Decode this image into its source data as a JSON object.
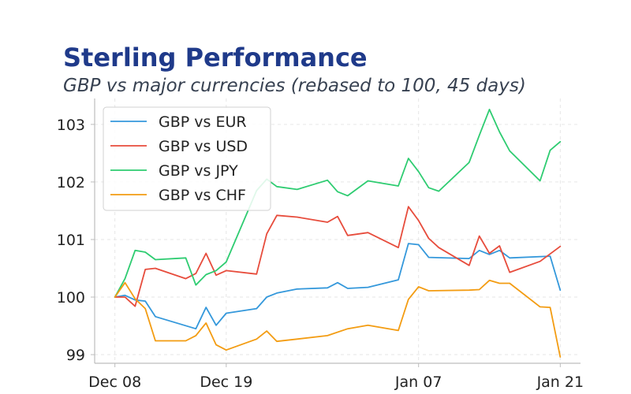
{
  "title": "Sterling Performance",
  "subtitle": "GBP vs major currencies (rebased to 100, 45 days)",
  "chart_data": {
    "type": "line",
    "xlim": [
      "2023-12-06",
      "2024-01-23"
    ],
    "ylim": [
      98.85,
      103.45
    ],
    "yticks": [
      99,
      100,
      101,
      102,
      103
    ],
    "xticks": [
      {
        "date": "2023-12-08",
        "label": "Dec 08"
      },
      {
        "date": "2023-12-19",
        "label": "Dec 19"
      },
      {
        "date": "2024-01-07",
        "label": "Jan 07"
      },
      {
        "date": "2024-01-21",
        "label": "Jan 21"
      }
    ],
    "grid": true,
    "legend_position": "top-left",
    "series": [
      {
        "name": "GBP vs EUR",
        "color": "#3498db",
        "points": [
          [
            "2023-12-08",
            100.0
          ],
          [
            "2023-12-09",
            100.03
          ],
          [
            "2023-12-10",
            99.95
          ],
          [
            "2023-12-11",
            99.93
          ],
          [
            "2023-12-12",
            99.66
          ],
          [
            "2023-12-16",
            99.45
          ],
          [
            "2023-12-17",
            99.82
          ],
          [
            "2023-12-18",
            99.51
          ],
          [
            "2023-12-19",
            99.72
          ],
          [
            "2023-12-22",
            99.8
          ],
          [
            "2023-12-23",
            100.0
          ],
          [
            "2023-12-24",
            100.07
          ],
          [
            "2023-12-26",
            100.14
          ],
          [
            "2023-12-29",
            100.16
          ],
          [
            "2023-12-30",
            100.25
          ],
          [
            "2023-12-31",
            100.15
          ],
          [
            "2024-01-02",
            100.17
          ],
          [
            "2024-01-05",
            100.3
          ],
          [
            "2024-01-06",
            100.93
          ],
          [
            "2024-01-07",
            100.91
          ],
          [
            "2024-01-08",
            100.69
          ],
          [
            "2024-01-12",
            100.67
          ],
          [
            "2024-01-13",
            100.81
          ],
          [
            "2024-01-14",
            100.74
          ],
          [
            "2024-01-15",
            100.81
          ],
          [
            "2024-01-16",
            100.68
          ],
          [
            "2024-01-20",
            100.71
          ],
          [
            "2024-01-21",
            100.12
          ]
        ]
      },
      {
        "name": "GBP vs USD",
        "color": "#e74c3c",
        "points": [
          [
            "2023-12-08",
            100.0
          ],
          [
            "2023-12-09",
            100.0
          ],
          [
            "2023-12-10",
            99.84
          ],
          [
            "2023-12-11",
            100.48
          ],
          [
            "2023-12-12",
            100.5
          ],
          [
            "2023-12-15",
            100.32
          ],
          [
            "2023-12-16",
            100.41
          ],
          [
            "2023-12-17",
            100.76
          ],
          [
            "2023-12-18",
            100.38
          ],
          [
            "2023-12-19",
            100.46
          ],
          [
            "2023-12-22",
            100.4
          ],
          [
            "2023-12-23",
            101.1
          ],
          [
            "2023-12-24",
            101.42
          ],
          [
            "2023-12-26",
            101.39
          ],
          [
            "2023-12-29",
            101.3
          ],
          [
            "2023-12-30",
            101.4
          ],
          [
            "2023-12-31",
            101.07
          ],
          [
            "2024-01-02",
            101.12
          ],
          [
            "2024-01-05",
            100.86
          ],
          [
            "2024-01-06",
            101.57
          ],
          [
            "2024-01-07",
            101.33
          ],
          [
            "2024-01-08",
            101.02
          ],
          [
            "2024-01-09",
            100.86
          ],
          [
            "2024-01-12",
            100.55
          ],
          [
            "2024-01-13",
            101.06
          ],
          [
            "2024-01-14",
            100.76
          ],
          [
            "2024-01-15",
            100.89
          ],
          [
            "2024-01-16",
            100.43
          ],
          [
            "2024-01-19",
            100.62
          ],
          [
            "2024-01-21",
            100.88
          ]
        ]
      },
      {
        "name": "GBP vs JPY",
        "color": "#2ecc71",
        "points": [
          [
            "2023-12-08",
            100.0
          ],
          [
            "2023-12-09",
            100.32
          ],
          [
            "2023-12-10",
            100.81
          ],
          [
            "2023-12-11",
            100.78
          ],
          [
            "2023-12-12",
            100.65
          ],
          [
            "2023-12-15",
            100.68
          ],
          [
            "2023-12-16",
            100.21
          ],
          [
            "2023-12-17",
            100.39
          ],
          [
            "2023-12-18",
            100.46
          ],
          [
            "2023-12-19",
            100.61
          ],
          [
            "2023-12-22",
            101.85
          ],
          [
            "2023-12-23",
            102.05
          ],
          [
            "2023-12-24",
            101.92
          ],
          [
            "2023-12-26",
            101.87
          ],
          [
            "2023-12-29",
            102.03
          ],
          [
            "2023-12-30",
            101.83
          ],
          [
            "2023-12-31",
            101.76
          ],
          [
            "2024-01-02",
            102.02
          ],
          [
            "2024-01-05",
            101.93
          ],
          [
            "2024-01-06",
            102.41
          ],
          [
            "2024-01-07",
            102.18
          ],
          [
            "2024-01-08",
            101.9
          ],
          [
            "2024-01-09",
            101.84
          ],
          [
            "2024-01-12",
            102.34
          ],
          [
            "2024-01-13",
            102.81
          ],
          [
            "2024-01-14",
            103.26
          ],
          [
            "2024-01-15",
            102.87
          ],
          [
            "2024-01-16",
            102.54
          ],
          [
            "2024-01-19",
            102.02
          ],
          [
            "2024-01-20",
            102.55
          ],
          [
            "2024-01-21",
            102.7
          ]
        ]
      },
      {
        "name": "GBP vs CHF",
        "color": "#f39c12",
        "points": [
          [
            "2023-12-08",
            100.0
          ],
          [
            "2023-12-09",
            100.25
          ],
          [
            "2023-12-10",
            99.97
          ],
          [
            "2023-12-11",
            99.8
          ],
          [
            "2023-12-12",
            99.24
          ],
          [
            "2023-12-15",
            99.24
          ],
          [
            "2023-12-16",
            99.33
          ],
          [
            "2023-12-17",
            99.55
          ],
          [
            "2023-12-18",
            99.17
          ],
          [
            "2023-12-19",
            99.08
          ],
          [
            "2023-12-22",
            99.27
          ],
          [
            "2023-12-23",
            99.41
          ],
          [
            "2023-12-24",
            99.23
          ],
          [
            "2023-12-26",
            99.27
          ],
          [
            "2023-12-29",
            99.33
          ],
          [
            "2023-12-31",
            99.45
          ],
          [
            "2024-01-02",
            99.51
          ],
          [
            "2024-01-05",
            99.42
          ],
          [
            "2024-01-06",
            99.96
          ],
          [
            "2024-01-07",
            100.18
          ],
          [
            "2024-01-08",
            100.11
          ],
          [
            "2024-01-12",
            100.12
          ],
          [
            "2024-01-13",
            100.13
          ],
          [
            "2024-01-14",
            100.29
          ],
          [
            "2024-01-15",
            100.24
          ],
          [
            "2024-01-16",
            100.24
          ],
          [
            "2024-01-19",
            99.83
          ],
          [
            "2024-01-20",
            99.82
          ],
          [
            "2024-01-21",
            98.96
          ]
        ]
      }
    ]
  }
}
